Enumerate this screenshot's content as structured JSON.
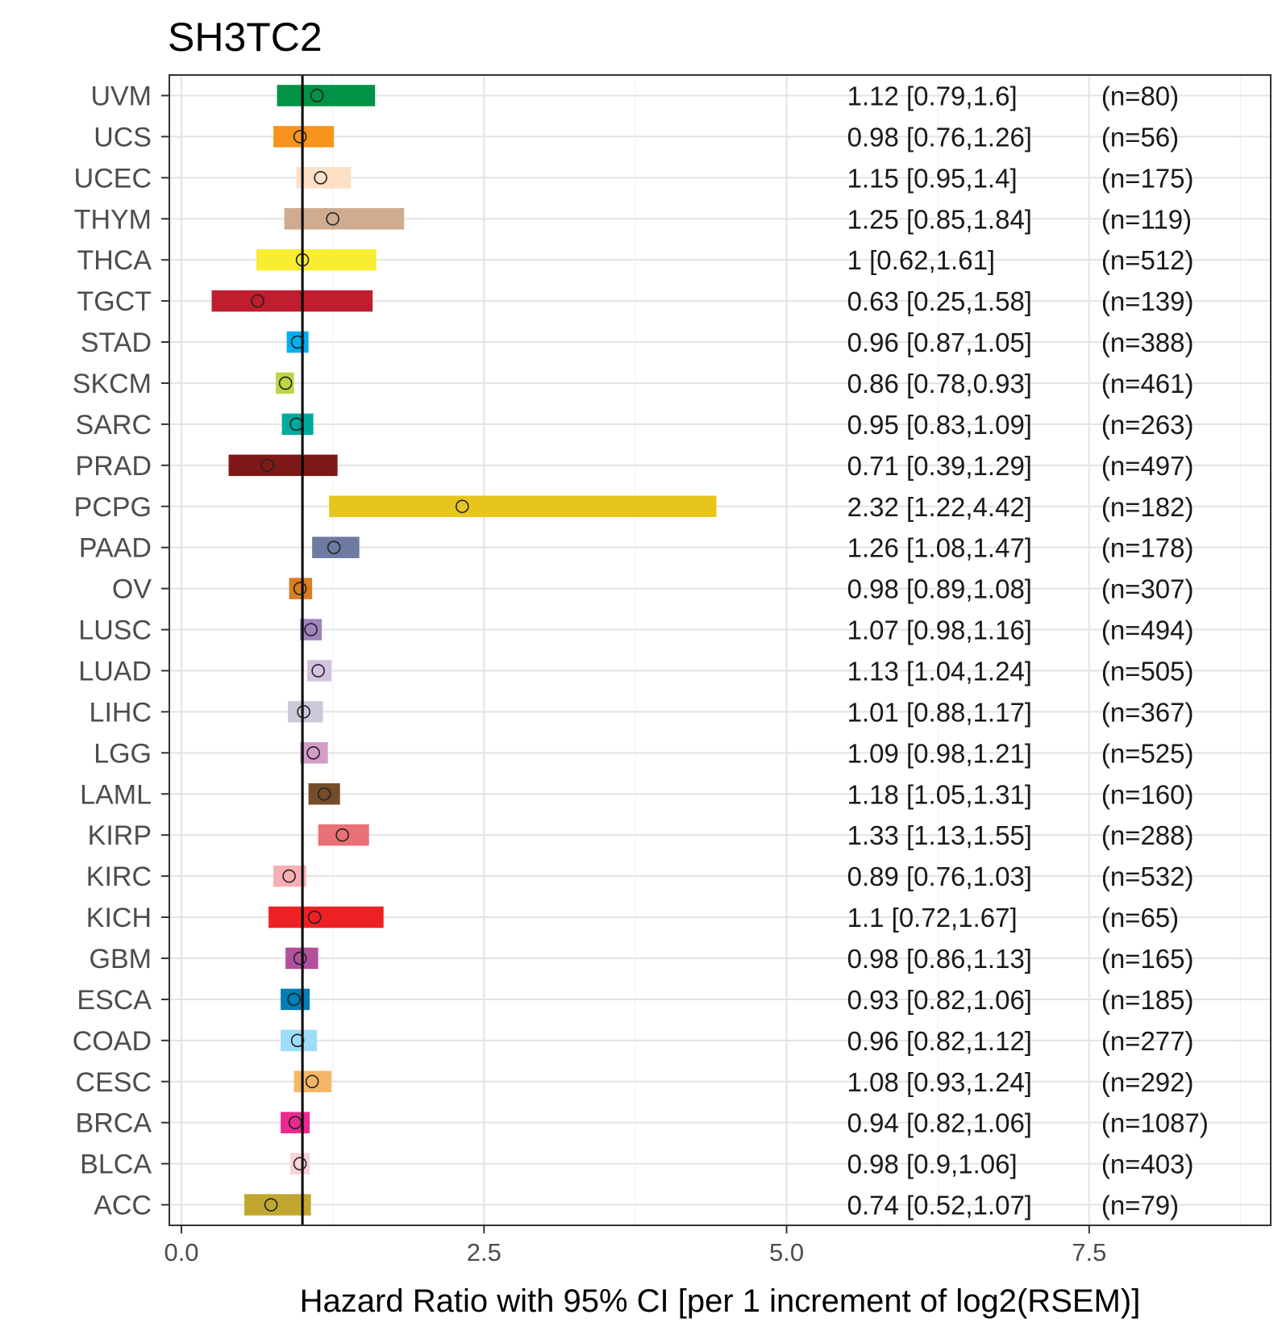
{
  "chart_data": {
    "type": "forest",
    "title": "SH3TC2",
    "xlabel": "Hazard Ratio with 95% CI [per 1 increment of log2(RSEM)]",
    "ylabel": "",
    "xlim": [
      -0.1,
      9.0
    ],
    "x_ticks": [
      {
        "value": 0.0,
        "label": "0.0"
      },
      {
        "value": 2.5,
        "label": "2.5"
      },
      {
        "value": 5.0,
        "label": "5.0"
      },
      {
        "value": 7.5,
        "label": "7.5"
      }
    ],
    "reference_line": 1,
    "grid": true,
    "rows": [
      {
        "label": "UVM",
        "hr": 1.12,
        "lo": 0.79,
        "hi": 1.6,
        "text": "1.12 [0.79,1.6]",
        "n": "(n=80)",
        "color": "#009345"
      },
      {
        "label": "UCS",
        "hr": 0.98,
        "lo": 0.76,
        "hi": 1.26,
        "text": "0.98 [0.76,1.26]",
        "n": "(n=56)",
        "color": "#F7941D"
      },
      {
        "label": "UCEC",
        "hr": 1.15,
        "lo": 0.95,
        "hi": 1.4,
        "text": "1.15 [0.95,1.4]",
        "n": "(n=175)",
        "color": "#FDE0C5"
      },
      {
        "label": "THYM",
        "hr": 1.25,
        "lo": 0.85,
        "hi": 1.84,
        "text": "1.25 [0.85,1.84]",
        "n": "(n=119)",
        "color": "#CFAC8F"
      },
      {
        "label": "THCA",
        "hr": 1,
        "lo": 0.62,
        "hi": 1.61,
        "text": "1 [0.62,1.61]",
        "n": "(n=512)",
        "color": "#F9ED32"
      },
      {
        "label": "TGCT",
        "hr": 0.63,
        "lo": 0.25,
        "hi": 1.58,
        "text": "0.63 [0.25,1.58]",
        "n": "(n=139)",
        "color": "#BE1E2D"
      },
      {
        "label": "STAD",
        "hr": 0.96,
        "lo": 0.87,
        "hi": 1.05,
        "text": "0.96 [0.87,1.05]",
        "n": "(n=388)",
        "color": "#00AEEF"
      },
      {
        "label": "SKCM",
        "hr": 0.86,
        "lo": 0.78,
        "hi": 0.93,
        "text": "0.86 [0.78,0.93]",
        "n": "(n=461)",
        "color": "#BBD642"
      },
      {
        "label": "SARC",
        "hr": 0.95,
        "lo": 0.83,
        "hi": 1.09,
        "text": "0.95 [0.83,1.09]",
        "n": "(n=263)",
        "color": "#00A99D"
      },
      {
        "label": "PRAD",
        "hr": 0.71,
        "lo": 0.39,
        "hi": 1.29,
        "text": "0.71 [0.39,1.29]",
        "n": "(n=497)",
        "color": "#7E1918"
      },
      {
        "label": "PCPG",
        "hr": 2.32,
        "lo": 1.22,
        "hi": 4.42,
        "text": "2.32 [1.22,4.42]",
        "n": "(n=182)",
        "color": "#E8C51D"
      },
      {
        "label": "PAAD",
        "hr": 1.26,
        "lo": 1.08,
        "hi": 1.47,
        "text": "1.26 [1.08,1.47]",
        "n": "(n=178)",
        "color": "#6E7BA2"
      },
      {
        "label": "OV",
        "hr": 0.98,
        "lo": 0.89,
        "hi": 1.08,
        "text": "0.98 [0.89,1.08]",
        "n": "(n=307)",
        "color": "#D97D25"
      },
      {
        "label": "LUSC",
        "hr": 1.07,
        "lo": 0.98,
        "hi": 1.16,
        "text": "1.07 [0.98,1.16]",
        "n": "(n=494)",
        "color": "#A084BD"
      },
      {
        "label": "LUAD",
        "hr": 1.13,
        "lo": 1.04,
        "hi": 1.24,
        "text": "1.13 [1.04,1.24]",
        "n": "(n=505)",
        "color": "#D3C3E0"
      },
      {
        "label": "LIHC",
        "hr": 1.01,
        "lo": 0.88,
        "hi": 1.17,
        "text": "1.01 [0.88,1.17]",
        "n": "(n=367)",
        "color": "#CACADA"
      },
      {
        "label": "LGG",
        "hr": 1.09,
        "lo": 0.98,
        "hi": 1.21,
        "text": "1.09 [0.98,1.21]",
        "n": "(n=525)",
        "color": "#D49DC7"
      },
      {
        "label": "LAML",
        "hr": 1.18,
        "lo": 1.05,
        "hi": 1.31,
        "text": "1.18 [1.05,1.31]",
        "n": "(n=160)",
        "color": "#754C29"
      },
      {
        "label": "KIRP",
        "hr": 1.33,
        "lo": 1.13,
        "hi": 1.55,
        "text": "1.33 [1.13,1.55]",
        "n": "(n=288)",
        "color": "#EA7075"
      },
      {
        "label": "KIRC",
        "hr": 0.89,
        "lo": 0.76,
        "hi": 1.03,
        "text": "0.89 [0.76,1.03]",
        "n": "(n=532)",
        "color": "#F8AFB3"
      },
      {
        "label": "KICH",
        "hr": 1.1,
        "lo": 0.72,
        "hi": 1.67,
        "text": "1.1 [0.72,1.67]",
        "n": "(n=65)",
        "color": "#ED2024"
      },
      {
        "label": "GBM",
        "hr": 0.98,
        "lo": 0.86,
        "hi": 1.13,
        "text": "0.98 [0.86,1.13]",
        "n": "(n=165)",
        "color": "#B2509E"
      },
      {
        "label": "ESCA",
        "hr": 0.93,
        "lo": 0.82,
        "hi": 1.06,
        "text": "0.93 [0.82,1.06]",
        "n": "(n=185)",
        "color": "#007EB5"
      },
      {
        "label": "COAD",
        "hr": 0.96,
        "lo": 0.82,
        "hi": 1.12,
        "text": "0.96 [0.82,1.12]",
        "n": "(n=277)",
        "color": "#9EDDF9"
      },
      {
        "label": "CESC",
        "hr": 1.08,
        "lo": 0.93,
        "hi": 1.24,
        "text": "1.08 [0.93,1.24]",
        "n": "(n=292)",
        "color": "#F6B667"
      },
      {
        "label": "BRCA",
        "hr": 0.94,
        "lo": 0.82,
        "hi": 1.06,
        "text": "0.94 [0.82,1.06]",
        "n": "(n=1087)",
        "color": "#ED2891"
      },
      {
        "label": "BLCA",
        "hr": 0.98,
        "lo": 0.9,
        "hi": 1.06,
        "text": "0.98 [0.9,1.06]",
        "n": "(n=403)",
        "color": "#FAD2D9"
      },
      {
        "label": "ACC",
        "hr": 0.74,
        "lo": 0.52,
        "hi": 1.07,
        "text": "0.74 [0.52,1.07]",
        "n": "(n=79)",
        "color": "#C1A72F"
      }
    ]
  }
}
